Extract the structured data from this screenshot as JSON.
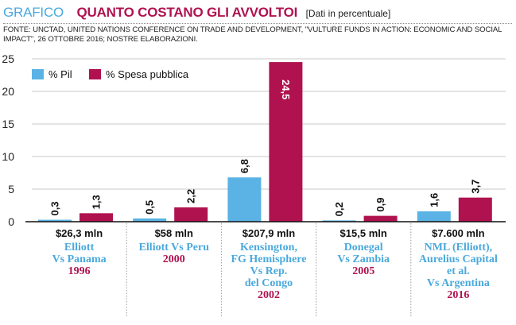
{
  "header": {
    "kicker": "GRAFICO",
    "title": "QUANTO COSTANO GLI AVVOLTOI",
    "subtitle": "[Dati in percentuale]",
    "source": "FONTE: UNCTAD, UNITED NATIONS CONFERENCE ON TRADE AND DEVELOPMENT, \"VULTURE FUNDS IN ACTION: ECONOMIC AND SOCIAL IMPACT\", 26 OTTOBRE 2016; NOSTRE ELABORAZIONI."
  },
  "colors": {
    "pil": "#5ab3e4",
    "spesa": "#b0124f",
    "kicker": "#4aa9dc",
    "grid": "#c8c8c8"
  },
  "chart_data": {
    "type": "bar",
    "title": "QUANTO COSTANO GLI AVVOLTOI",
    "ylim": [
      0,
      25
    ],
    "yticks": [
      0,
      5,
      10,
      15,
      20,
      25
    ],
    "legend_position": "top-left",
    "grid": true,
    "categories": [
      {
        "amount": "$26,3 mln",
        "names": [
          "Elliott",
          "Vs Panama"
        ],
        "year": "1996"
      },
      {
        "amount": "$58 mln",
        "names": [
          "Elliott Vs Peru"
        ],
        "year": "2000"
      },
      {
        "amount": "$207,9 mln",
        "names": [
          "Kensington,",
          "FG Hemisphere",
          "Vs Rep.",
          "del Congo"
        ],
        "year": "2002"
      },
      {
        "amount": "$15,5 mln",
        "names": [
          "Donegal",
          "Vs Zambia"
        ],
        "year": "2005"
      },
      {
        "amount": "$7.600 mln",
        "names": [
          "NML (Elliott),",
          "Aurelius Capital",
          "et al.",
          "Vs Argentina"
        ],
        "year": "2016"
      }
    ],
    "series": [
      {
        "name": "% Pil",
        "values": [
          0.3,
          0.5,
          6.8,
          0.2,
          1.6
        ],
        "labels": [
          "0,3",
          "0,5",
          "6,8",
          "0,2",
          "1,6"
        ]
      },
      {
        "name": "% Spesa pubblica",
        "values": [
          1.3,
          2.2,
          24.5,
          0.9,
          3.7
        ],
        "labels": [
          "1,3",
          "2,2",
          "24,5",
          "0,9",
          "3,7"
        ]
      }
    ]
  }
}
